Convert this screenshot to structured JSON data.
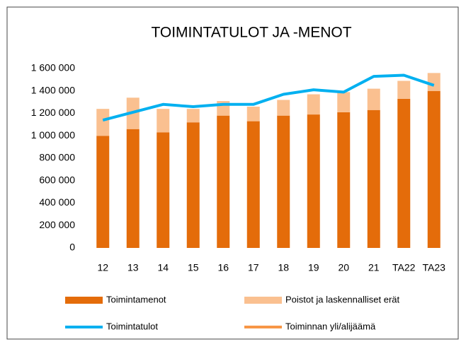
{
  "chart_data": {
    "type": "bar",
    "stacked": true,
    "title": "TOIMINTATULOT  JA -MENOT",
    "categories": [
      "12",
      "13",
      "14",
      "15",
      "16",
      "17",
      "18",
      "19",
      "20",
      "21",
      "TA22",
      "TA23"
    ],
    "series": [
      {
        "name": "Toimintamenot",
        "type": "bar",
        "color": "#e46c0a",
        "values": [
          1000000,
          1060000,
          1030000,
          1120000,
          1180000,
          1130000,
          1180000,
          1190000,
          1210000,
          1230000,
          1330000,
          1400000
        ]
      },
      {
        "name": "Poistot ja laskennalliset erät",
        "type": "bar",
        "color": "#fac090",
        "values": [
          240000,
          280000,
          210000,
          120000,
          130000,
          130000,
          140000,
          180000,
          180000,
          190000,
          160000,
          160000
        ]
      },
      {
        "name": "Toimintatulot",
        "type": "line",
        "color": "#00b0f0",
        "values": [
          1140000,
          1210000,
          1280000,
          1260000,
          1280000,
          1280000,
          1370000,
          1410000,
          1390000,
          1530000,
          1540000,
          1450000
        ]
      },
      {
        "name": "Toiminnan yli/alijäämä",
        "type": "line",
        "color": "#f79646",
        "values": [
          null,
          null,
          null,
          null,
          null,
          null,
          null,
          null,
          null,
          null,
          null,
          null
        ]
      }
    ],
    "ylim": [
      0,
      1600000
    ],
    "yticks": [
      0,
      {
        "value": 200000,
        "label": "200 000"
      },
      {
        "value": 400000,
        "label": "400 000"
      },
      {
        "value": 600000,
        "label": "600 000"
      },
      {
        "value": 800000,
        "label": "800 000"
      },
      {
        "value": 1000000,
        "label": "1 000 000"
      },
      {
        "value": 1200000,
        "label": "1 200 000"
      },
      {
        "value": 1400000,
        "label": "1 400 000"
      },
      {
        "value": 1600000,
        "label": "1 600 000"
      }
    ],
    "grid": false,
    "legend": "bottom"
  }
}
